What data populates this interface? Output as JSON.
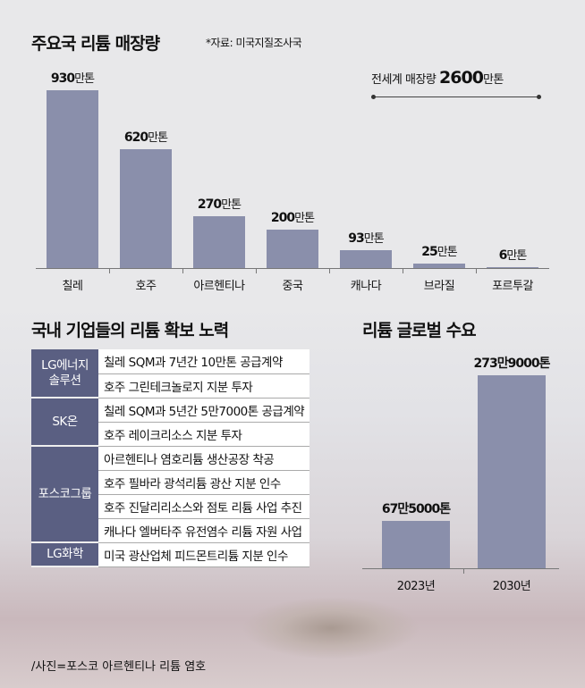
{
  "chart_data": [
    {
      "type": "bar",
      "title": "주요국 리튬 매장량",
      "source": "*자료: 미국지질조사국",
      "categories": [
        "칠레",
        "호주",
        "아르헨티나",
        "중국",
        "캐나다",
        "브라질",
        "포르투갈"
      ],
      "values": [
        930,
        620,
        270,
        200,
        93,
        25,
        6
      ],
      "labels": [
        "930",
        "620",
        "270",
        "200",
        "93",
        "25",
        "6"
      ],
      "unit": "만톤",
      "annotation": {
        "text": "전세계 매장량",
        "value": "2600",
        "unit": "만톤"
      },
      "color": "#8a8fab"
    },
    {
      "type": "bar",
      "title": "리튬 글로벌 수요",
      "categories": [
        "2023년",
        "2030년"
      ],
      "values": [
        67.5,
        273.9
      ],
      "labels": [
        "67만5000톤",
        "273만9000톤"
      ],
      "color": "#8a8fab"
    }
  ],
  "table": {
    "title": "국내 기업들의 리튬 확보 노력",
    "groups": [
      {
        "name": "LG에너지\n솔루션",
        "items": [
          "칠레 SQM과 7년간 10만톤 공급계약",
          "호주 그린테크놀로지 지분 투자"
        ]
      },
      {
        "name": "SK온",
        "items": [
          "칠레 SQM과 5년간 5만7000톤 공급계약",
          "호주 레이크리소스 지분 투자"
        ]
      },
      {
        "name": "포스코그룹",
        "items": [
          "아르헨티나 염호리튬 생산공장 착공",
          "호주 필바라 광석리튬 광산 지분 인수",
          "호주 진달리리소스와 점토 리튬 사업 추진",
          "캐나다 엘버타주 유전염수 리튬 자원 사업"
        ]
      },
      {
        "name": "LG화학",
        "items": [
          "미국 광산업체 피드몬트리튬 지분 인수"
        ]
      }
    ]
  },
  "caption": "/사진=포스코 아르헨티나 리튬 염호"
}
